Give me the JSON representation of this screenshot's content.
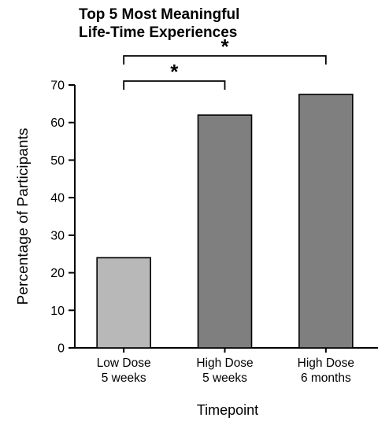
{
  "chart_data": {
    "type": "bar",
    "title_lines": [
      "Top 5 Most Meaningful",
      "Life-Time Experiences"
    ],
    "xlabel": "Timepoint",
    "ylabel": "Percentage of Participants",
    "categories": [
      [
        "Low Dose",
        "5 weeks"
      ],
      [
        "High Dose",
        "5 weeks"
      ],
      [
        "High Dose",
        "6 months"
      ]
    ],
    "values": [
      24,
      62,
      67.5
    ],
    "bar_colors": [
      "#b8b8b8",
      "#7f7f7f",
      "#7f7f7f"
    ],
    "ylim": [
      0,
      70
    ],
    "yticks": [
      0,
      10,
      20,
      30,
      40,
      50,
      60,
      70
    ],
    "grid": false,
    "significance": [
      {
        "from": 0,
        "to": 2,
        "label": "*"
      },
      {
        "from": 0,
        "to": 1,
        "label": "*"
      }
    ]
  }
}
